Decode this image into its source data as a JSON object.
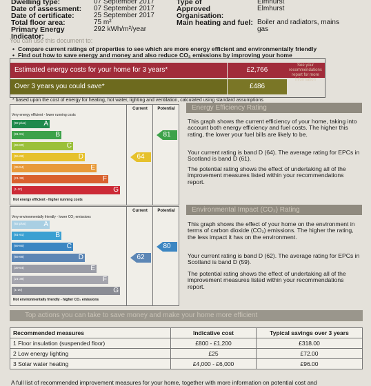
{
  "header": {
    "left": [
      {
        "label": "Dwelling type:",
        "value": "07 September 2017"
      },
      {
        "label": "Date of assessment:",
        "value": "07 September 2017"
      },
      {
        "label": "Date of certificate:",
        "value": "25 September 2017"
      },
      {
        "label": "Total floor area:",
        "value": "75 m²"
      },
      {
        "label": "Primary Energy Indicator:",
        "value": "292 kWh/m²/year"
      }
    ],
    "right": [
      {
        "label": "Type of",
        "value": "Elmhurst"
      },
      {
        "label": "Approved Organisation:",
        "value": "Elmhurst"
      },
      {
        "label": "Main heating and fuel:",
        "value": "Boiler and radiators, mains gas"
      }
    ]
  },
  "use": {
    "title": "You can use this document to:",
    "bullet1": "Compare current ratings of properties to see which are more energy efficient and environmentally friendly",
    "bullet2": "Find out how to save energy and money and also reduce CO₂ emissions by improving your home"
  },
  "costs": {
    "row1_label": "Estimated energy costs for your home for 3 years*",
    "row1_value": "£2,766",
    "row2_label": "Over 3 years you could save*",
    "row2_value": "£486",
    "side_text": "See your recommendations report for more information",
    "note": "* based upon the cost of energy for heating, hot water, lighting and ventilation, calculated using standard assumptions"
  },
  "energy_chart": {
    "col_current": "Current",
    "col_potential": "Potential",
    "top_label": "Very energy efficient - lower running costs",
    "bottom_label": "Not energy efficient - higher running costs",
    "current": "64",
    "potential": "81",
    "bands": [
      {
        "range": "(92 plus)",
        "letter": "A",
        "color": "#1f8a4c"
      },
      {
        "range": "(81-91)",
        "letter": "B",
        "color": "#3da24a"
      },
      {
        "range": "(69-80)",
        "letter": "C",
        "color": "#9bc03a"
      },
      {
        "range": "(55-68)",
        "letter": "D",
        "color": "#e6c12c"
      },
      {
        "range": "(39-54)",
        "letter": "E",
        "color": "#e89a3a"
      },
      {
        "range": "(21-38)",
        "letter": "F",
        "color": "#d9612e"
      },
      {
        "range": "(1-20)",
        "letter": "G",
        "color": "#cc2a36"
      }
    ]
  },
  "env_chart": {
    "col_current": "Current",
    "col_potential": "Potential",
    "top_label": "Very environmentally friendly - lower CO₂ emissions",
    "bottom_label": "Not environmentally friendly - higher CO₂ emissions",
    "current": "62",
    "potential": "80",
    "bands": [
      {
        "range": "(92 plus)",
        "letter": "A",
        "color": "#a9cfe3"
      },
      {
        "range": "(81-91)",
        "letter": "B",
        "color": "#3aa0d2"
      },
      {
        "range": "(69-80)",
        "letter": "C",
        "color": "#3c86c2"
      },
      {
        "range": "(55-68)",
        "letter": "D",
        "color": "#5c86b5"
      },
      {
        "range": "(39-54)",
        "letter": "E",
        "color": "#9a9ca6"
      },
      {
        "range": "(21-38)",
        "letter": "F",
        "color": "#a5a5ad"
      },
      {
        "range": "(1-20)",
        "letter": "G",
        "color": "#8a8c94"
      }
    ]
  },
  "ee_section": {
    "title": "Energy Efficiency Rating",
    "p1": "This graph shows the current efficiency of your home, taking into account both energy efficiency and fuel costs. The higher this rating, the lower your fuel bills are likely to be.",
    "p2": "Your current rating is band D (64). The average rating for EPCs in Scotland is band D (61).",
    "p3": "The potential rating shows the effect of undertaking all of the improvement measures listed within your recommendations report."
  },
  "ei_section": {
    "title": "Environmental Impact (CO₂) Rating",
    "p1": "This graph shows the effect of your home on the environment in terms of carbon dioxide (CO₂) emissions. The higher the rating, the less impact it has on the environment.",
    "p2": "Your current rating is band D (62). The average rating for EPCs in Scotland is band D (59).",
    "p3": "The potential rating shows the effect of undertaking all of the improvement measures listed within your recommendations report."
  },
  "actions": {
    "title": "Top actions you can take to save money and make your home more efficient",
    "headers": [
      "Recommended measures",
      "Indicative cost",
      "Typical savings over 3 years"
    ],
    "rows": [
      [
        "1 Floor insulation (suspended floor)",
        "£800 - £1,200",
        "£318.00"
      ],
      [
        "2 Low energy lighting",
        "£25",
        "£72.00"
      ],
      [
        "3 Solar water heating",
        "£4,000 - £6,000",
        "£96.00"
      ]
    ],
    "footer": "A full list of recommended improvement measures for your home, together with more information on potential cost and"
  }
}
